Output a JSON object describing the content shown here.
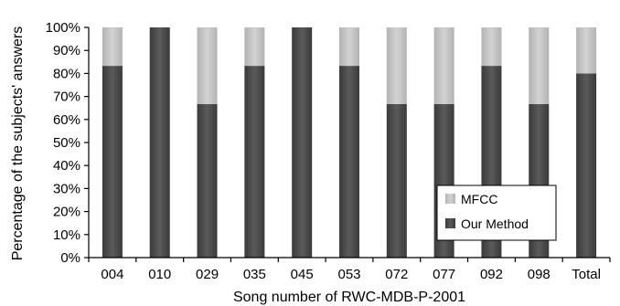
{
  "chart_data": {
    "type": "bar",
    "stacked": true,
    "categories": [
      "004",
      "010",
      "029",
      "035",
      "045",
      "053",
      "072",
      "077",
      "092",
      "098",
      "Total"
    ],
    "series": [
      {
        "name": "Our Method",
        "values": [
          83.3,
          100,
          66.7,
          83.3,
          100,
          83.3,
          66.7,
          66.7,
          83.3,
          66.7,
          80
        ],
        "color": "#484848"
      },
      {
        "name": "MFCC",
        "values": [
          16.7,
          0,
          33.3,
          16.7,
          0,
          16.7,
          33.3,
          33.3,
          16.7,
          33.3,
          20
        ],
        "color": "#bdbdbd"
      }
    ],
    "yticks": [
      "0%",
      "10%",
      "20%",
      "30%",
      "40%",
      "50%",
      "60%",
      "70%",
      "80%",
      "90%",
      "100%"
    ],
    "ylim": [
      0,
      100
    ],
    "xlabel": "Song number of RWC-MDB-P-2001",
    "ylabel": "Percentage of the subjects' answers",
    "legend": {
      "placement": "bottom-right",
      "entries": [
        "MFCC",
        "Our Method"
      ]
    },
    "grid": false
  }
}
